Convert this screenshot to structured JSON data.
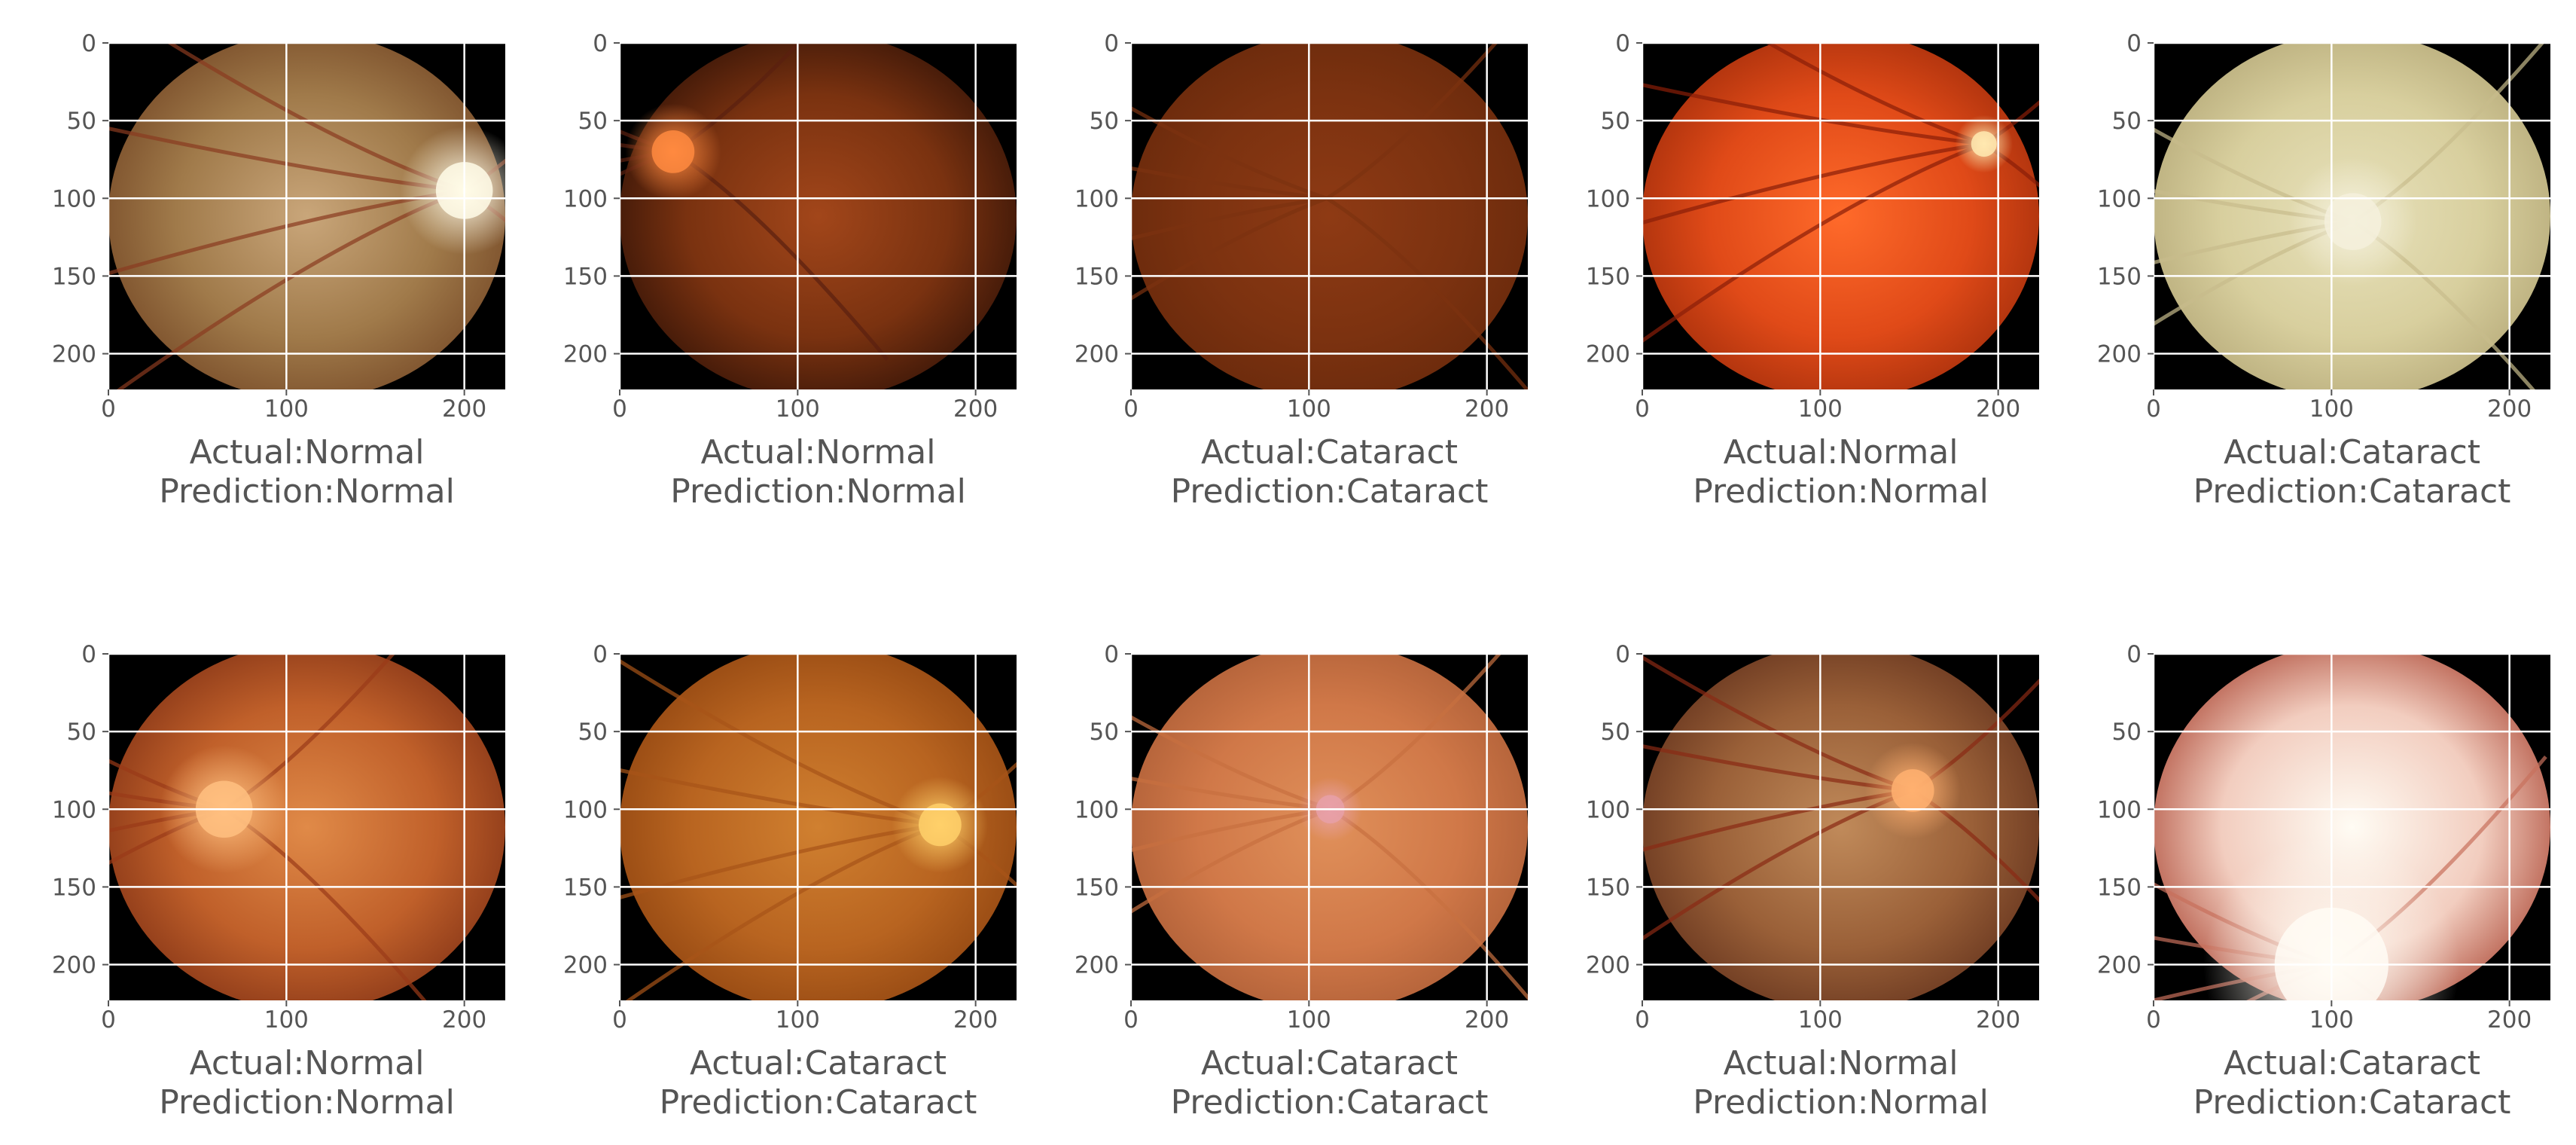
{
  "figure": {
    "rows": 2,
    "cols": 5,
    "tick_color": "#555555",
    "grid_color": "#ffffff",
    "background_color": "#000000"
  },
  "chart_data": [
    {
      "type": "image",
      "actual": "Actual:Normal",
      "prediction": "Prediction:Normal",
      "xlim": [
        0,
        223
      ],
      "ylim": [
        223,
        0
      ],
      "xticks": [
        "0",
        "100",
        "200"
      ],
      "yticks": [
        "0",
        "50",
        "100",
        "150",
        "200"
      ],
      "grid": true,
      "image": {
        "palette": [
          "#c9a67a",
          "#a07a4a",
          "#7a4e2a"
        ],
        "disc_color": "#fffbe8",
        "disc_position": [
          200,
          95
        ],
        "disc_radius": 20,
        "vessel_color": "#8a3b20"
      }
    },
    {
      "type": "image",
      "actual": "Actual:Normal",
      "prediction": "Prediction:Normal",
      "xlim": [
        0,
        223
      ],
      "ylim": [
        223,
        0
      ],
      "xticks": [
        "0",
        "100",
        "200"
      ],
      "yticks": [
        "0",
        "50",
        "100",
        "150",
        "200"
      ],
      "grid": true,
      "image": {
        "palette": [
          "#a2461a",
          "#7a3210",
          "#3a1608"
        ],
        "disc_color": "#ff8a40",
        "disc_position": [
          30,
          70
        ],
        "disc_radius": 15,
        "vessel_color": "#5a2010"
      }
    },
    {
      "type": "image",
      "actual": "Actual:Cataract",
      "prediction": "Prediction:Cataract",
      "xlim": [
        0,
        223
      ],
      "ylim": [
        223,
        0
      ],
      "xticks": [
        "0",
        "100",
        "200"
      ],
      "yticks": [
        "0",
        "50",
        "100",
        "150",
        "200"
      ],
      "grid": true,
      "image": {
        "palette": [
          "#8e3a14",
          "#7c3210",
          "#6a2a0c"
        ],
        "disc_color": "#8e3a14",
        "disc_position": [
          110,
          100
        ],
        "disc_radius": 0,
        "vessel_color": "#7c3210"
      }
    },
    {
      "type": "image",
      "actual": "Actual:Normal",
      "prediction": "Prediction:Normal",
      "xlim": [
        0,
        223
      ],
      "ylim": [
        223,
        0
      ],
      "xticks": [
        "0",
        "100",
        "200"
      ],
      "yticks": [
        "0",
        "50",
        "100",
        "150",
        "200"
      ],
      "grid": true,
      "image": {
        "palette": [
          "#ff6a2a",
          "#e04a18",
          "#a8300c"
        ],
        "disc_color": "#ffe9b0",
        "disc_position": [
          192,
          65
        ],
        "disc_radius": 9,
        "vessel_color": "#8a1e08"
      }
    },
    {
      "type": "image",
      "actual": "Actual:Cataract",
      "prediction": "Prediction:Cataract",
      "xlim": [
        0,
        223
      ],
      "ylim": [
        223,
        0
      ],
      "xticks": [
        "0",
        "100",
        "200"
      ],
      "yticks": [
        "0",
        "50",
        "100",
        "150",
        "200"
      ],
      "grid": true,
      "image": {
        "palette": [
          "#e8e2bc",
          "#d8cf9e",
          "#b9ad7c"
        ],
        "disc_color": "#f4f0dc",
        "disc_position": [
          112,
          115
        ],
        "disc_radius": 20,
        "vessel_color": "#c8bc8c"
      }
    },
    {
      "type": "image",
      "actual": "Actual:Normal",
      "prediction": "Prediction:Normal",
      "xlim": [
        0,
        223
      ],
      "ylim": [
        223,
        0
      ],
      "xticks": [
        "0",
        "100",
        "200"
      ],
      "yticks": [
        "0",
        "50",
        "100",
        "150",
        "200"
      ],
      "grid": true,
      "image": {
        "palette": [
          "#e08a48",
          "#c0602a",
          "#8a3818"
        ],
        "disc_color": "#ffc080",
        "disc_position": [
          65,
          100
        ],
        "disc_radius": 20,
        "vessel_color": "#9a3a18"
      }
    },
    {
      "type": "image",
      "actual": "Actual:Cataract",
      "prediction": "Prediction:Cataract",
      "xlim": [
        0,
        223
      ],
      "ylim": [
        223,
        0
      ],
      "xticks": [
        "0",
        "100",
        "200"
      ],
      "yticks": [
        "0",
        "50",
        "100",
        "150",
        "200"
      ],
      "grid": true,
      "image": {
        "palette": [
          "#d08030",
          "#b86420",
          "#944812"
        ],
        "disc_color": "#ffd06a",
        "disc_position": [
          180,
          110
        ],
        "disc_radius": 15,
        "vessel_color": "#a85418"
      }
    },
    {
      "type": "image",
      "actual": "Actual:Cataract",
      "prediction": "Prediction:Cataract",
      "xlim": [
        0,
        223
      ],
      "ylim": [
        223,
        0
      ],
      "xticks": [
        "0",
        "100",
        "200"
      ],
      "yticks": [
        "0",
        "50",
        "100",
        "150",
        "200"
      ],
      "grid": true,
      "image": {
        "palette": [
          "#e0905a",
          "#d07848",
          "#b06038"
        ],
        "disc_color": "#e8a0a8",
        "disc_position": [
          112,
          100
        ],
        "disc_radius": 10,
        "vessel_color": "#c87040"
      }
    },
    {
      "type": "image",
      "actual": "Actual:Normal",
      "prediction": "Prediction:Normal",
      "xlim": [
        0,
        223
      ],
      "ylim": [
        223,
        0
      ],
      "xticks": [
        "0",
        "100",
        "200"
      ],
      "yticks": [
        "0",
        "50",
        "100",
        "150",
        "200"
      ],
      "grid": true,
      "image": {
        "palette": [
          "#c08a5a",
          "#9a6038",
          "#6a3820"
        ],
        "disc_color": "#ffb070",
        "disc_position": [
          152,
          88
        ],
        "disc_radius": 15,
        "vessel_color": "#8a2a14"
      }
    },
    {
      "type": "image",
      "actual": "Actual:Cataract",
      "prediction": "Prediction:Cataract",
      "xlim": [
        0,
        223
      ],
      "ylim": [
        223,
        0
      ],
      "xticks": [
        "0",
        "100",
        "200"
      ],
      "yticks": [
        "0",
        "50",
        "100",
        "150",
        "200"
      ],
      "grid": true,
      "image": {
        "palette": [
          "#fffcf4",
          "#f2cdbf",
          "#b55a48"
        ],
        "disc_color": "#fffcf4",
        "disc_position": [
          100,
          200
        ],
        "disc_radius": 40,
        "vessel_color": "#c8705c"
      }
    }
  ]
}
